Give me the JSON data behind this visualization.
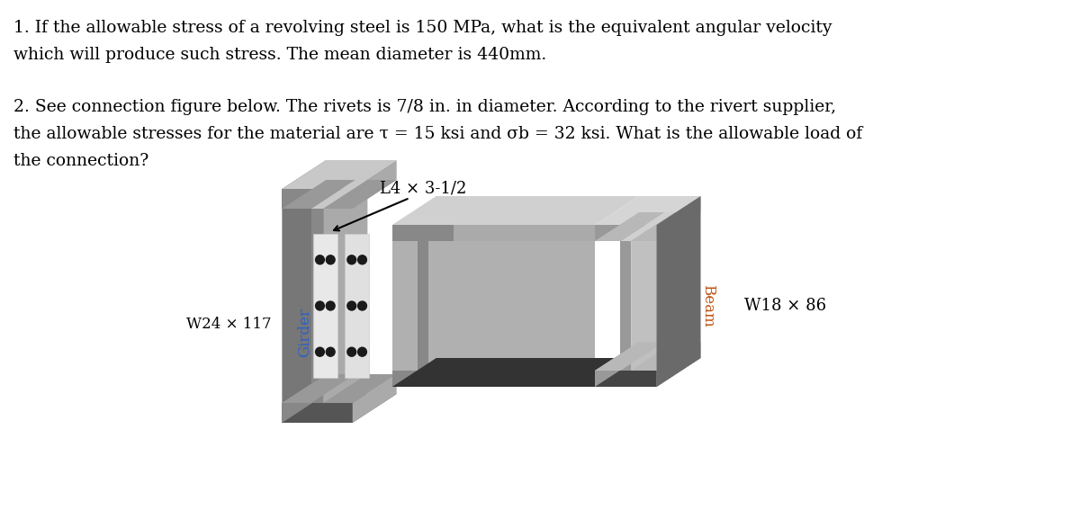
{
  "background_color": "#ffffff",
  "text1_line1": "1. If the allowable stress of a revolving steel is 150 MPa, what is the equivalent angular velocity",
  "text1_line2": "which will produce such stress. The mean diameter is 440mm.",
  "text2_line1": "2. See connection figure below. The rivets is 7/8 in. in diameter. According to the rivert supplier,",
  "text2_line2": "the allowable stresses for the material are τ = 15 ksi and σb = 32 ksi. What is the allowable load of",
  "text2_line3": "the connection?",
  "label_angle": "L4 × 3-1/2",
  "label_girder": "Girder",
  "label_beam": "Beam",
  "label_w24": "W24 × 117",
  "label_w18": "W18 × 86",
  "font_size_text": 13.5,
  "font_size_labels": 12,
  "font_size_wlabels": 12,
  "text_color": "#000000",
  "girder_label_color": "#3060c0",
  "beam_label_color": "#c05010"
}
